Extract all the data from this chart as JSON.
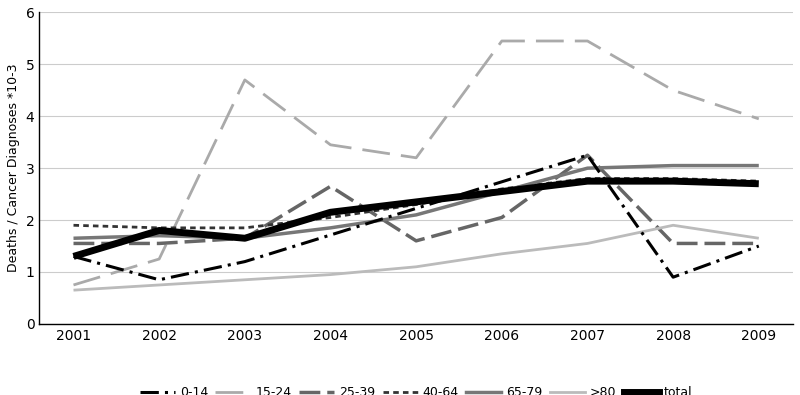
{
  "years": [
    2001,
    2002,
    2003,
    2004,
    2005,
    2006,
    2007,
    2008,
    2009
  ],
  "plot_data": {
    "0-14": [
      1.3,
      0.85,
      1.2,
      null,
      null,
      null,
      3.25,
      0.9,
      1.5
    ],
    "15-24": [
      0.75,
      1.25,
      4.7,
      3.45,
      3.2,
      5.45,
      5.45,
      4.5,
      3.95
    ],
    "25-39": [
      1.55,
      1.55,
      1.65,
      2.65,
      1.6,
      2.05,
      3.25,
      1.55,
      1.55
    ],
    "40-64": [
      1.9,
      1.85,
      1.85,
      2.05,
      2.3,
      2.6,
      2.8,
      2.8,
      2.75
    ],
    "65-79": [
      1.65,
      1.7,
      1.65,
      1.85,
      2.1,
      2.55,
      3.0,
      3.05,
      3.05
    ],
    ">80": [
      0.65,
      0.75,
      0.85,
      0.95,
      1.1,
      1.35,
      1.55,
      1.9,
      1.65
    ],
    "total": [
      1.3,
      1.8,
      1.65,
      2.15,
      2.35,
      2.55,
      2.75,
      2.75,
      2.7
    ]
  },
  "line_configs": {
    "0-14": {
      "color": "#000000",
      "linewidth": 2.2,
      "zorder": 5
    },
    "15-24": {
      "color": "#aaaaaa",
      "linewidth": 2.0,
      "zorder": 3
    },
    "25-39": {
      "color": "#666666",
      "linewidth": 2.5,
      "zorder": 3
    },
    "40-64": {
      "color": "#333333",
      "linewidth": 2.0,
      "zorder": 4
    },
    "65-79": {
      "color": "#777777",
      "linewidth": 2.5,
      "zorder": 4
    },
    ">80": {
      "color": "#bbbbbb",
      "linewidth": 2.0,
      "zorder": 3
    },
    "total": {
      "color": "#000000",
      "linewidth": 5.0,
      "zorder": 6
    }
  },
  "ylabel": "Deaths / Cancer Diagnoses *10-3",
  "ylim": [
    0,
    6
  ],
  "yticks": [
    0,
    1,
    2,
    3,
    4,
    5,
    6
  ],
  "background_color": "#ffffff",
  "grid_color": "#cccccc"
}
